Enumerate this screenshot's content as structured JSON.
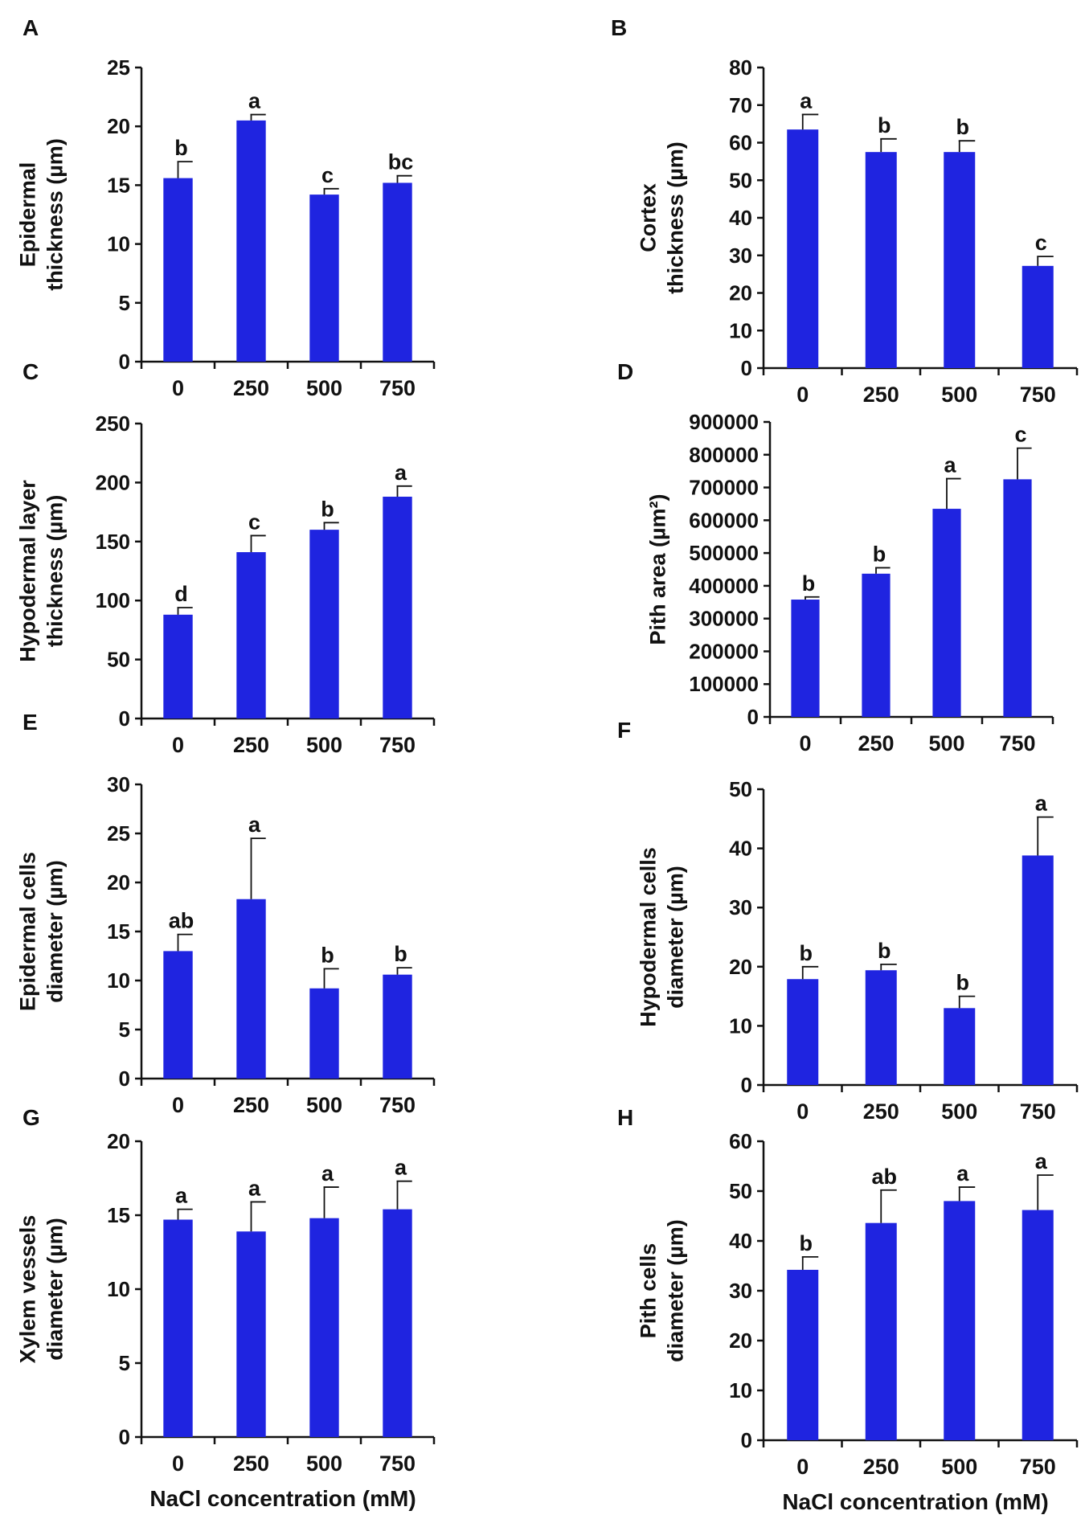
{
  "colors": {
    "bar": "#1f24e0",
    "axis": "#111111"
  },
  "chart_data": [
    {
      "panel": "A",
      "type": "bar",
      "ylabel_lines": [
        "Epidermal",
        "thickness (µm)"
      ],
      "categories": [
        "0",
        "250",
        "500",
        "750"
      ],
      "values": [
        15.6,
        20.5,
        14.2,
        15.2
      ],
      "errors": [
        1.4,
        0.5,
        0.5,
        0.6
      ],
      "letters": [
        "b",
        "a",
        "c",
        "bc"
      ],
      "ylim": [
        0,
        25
      ],
      "yticks": [
        "0",
        "5",
        "10",
        "15",
        "20",
        "25"
      ],
      "xlabel": ""
    },
    {
      "panel": "B",
      "type": "bar",
      "ylabel_lines": [
        "Cortex",
        "thickness (µm)"
      ],
      "categories": [
        "0",
        "250",
        "500",
        "750"
      ],
      "values": [
        63.5,
        57.5,
        57.5,
        27.2
      ],
      "errors": [
        4.0,
        3.5,
        3.0,
        2.5
      ],
      "letters": [
        "a",
        "b",
        "b",
        "c"
      ],
      "ylim": [
        0,
        80
      ],
      "yticks": [
        "0",
        "10",
        "20",
        "30",
        "40",
        "50",
        "60",
        "70",
        "80"
      ],
      "xlabel": ""
    },
    {
      "panel": "C",
      "type": "bar",
      "ylabel_lines": [
        "Hypodermal layer",
        "thickness (µm)"
      ],
      "categories": [
        "0",
        "250",
        "500",
        "750"
      ],
      "values": [
        88,
        141,
        160,
        188
      ],
      "errors": [
        6,
        14,
        6,
        9
      ],
      "letters": [
        "d",
        "c",
        "b",
        "a"
      ],
      "ylim": [
        0,
        250
      ],
      "yticks": [
        "0",
        "50",
        "100",
        "150",
        "200",
        "250"
      ],
      "xlabel": ""
    },
    {
      "panel": "D",
      "type": "bar",
      "ylabel_lines": [
        "Pith area (µm²)"
      ],
      "categories": [
        "0",
        "250",
        "500",
        "750"
      ],
      "values": [
        358000,
        437000,
        635000,
        725000
      ],
      "errors": [
        8000,
        18000,
        92000,
        95000
      ],
      "letters": [
        "b",
        "b",
        "a",
        "c"
      ],
      "ylim": [
        0,
        900000
      ],
      "yticks": [
        "0",
        "100000",
        "200000",
        "300000",
        "400000",
        "500000",
        "600000",
        "700000",
        "800000",
        "900000"
      ],
      "xlabel": ""
    },
    {
      "panel": "E",
      "type": "bar",
      "ylabel_lines": [
        "Epidermal cells",
        "diameter (µm)"
      ],
      "categories": [
        "0",
        "250",
        "500",
        "750"
      ],
      "values": [
        13.0,
        18.3,
        9.2,
        10.6
      ],
      "errors": [
        1.7,
        6.2,
        2.0,
        0.7
      ],
      "letters": [
        "ab",
        "a",
        "b",
        "b"
      ],
      "ylim": [
        0,
        30
      ],
      "yticks": [
        "0",
        "5",
        "10",
        "15",
        "20",
        "25",
        "30"
      ],
      "xlabel": ""
    },
    {
      "panel": "F",
      "type": "bar",
      "ylabel_lines": [
        "Hypodermal cells",
        "diameter (µm)"
      ],
      "categories": [
        "0",
        "250",
        "500",
        "750"
      ],
      "values": [
        17.9,
        19.4,
        13.0,
        38.8
      ],
      "errors": [
        2.1,
        1.0,
        2.0,
        6.5
      ],
      "letters": [
        "b",
        "b",
        "b",
        "a"
      ],
      "ylim": [
        0,
        50
      ],
      "yticks": [
        "0",
        "10",
        "20",
        "30",
        "40",
        "50"
      ],
      "xlabel": ""
    },
    {
      "panel": "G",
      "type": "bar",
      "ylabel_lines": [
        "Xylem vessels",
        "diameter (µm)"
      ],
      "categories": [
        "0",
        "250",
        "500",
        "750"
      ],
      "values": [
        14.7,
        13.9,
        14.8,
        15.4
      ],
      "errors": [
        0.7,
        2.0,
        2.1,
        1.9
      ],
      "letters": [
        "a",
        "a",
        "a",
        "a"
      ],
      "ylim": [
        0,
        20
      ],
      "yticks": [
        "0",
        "5",
        "10",
        "15",
        "20"
      ],
      "xlabel": "NaCl concentration (mM)"
    },
    {
      "panel": "H",
      "type": "bar",
      "ylabel_lines": [
        "Pith cells",
        "diameter (µm)"
      ],
      "categories": [
        "0",
        "250",
        "500",
        "750"
      ],
      "values": [
        34.2,
        43.6,
        48.0,
        46.2
      ],
      "errors": [
        2.6,
        6.6,
        2.8,
        7.0
      ],
      "letters": [
        "b",
        "ab",
        "a",
        "a"
      ],
      "ylim": [
        0,
        60
      ],
      "yticks": [
        "0",
        "10",
        "20",
        "30",
        "40",
        "50",
        "60"
      ],
      "xlabel": "NaCl concentration (mM)"
    }
  ]
}
